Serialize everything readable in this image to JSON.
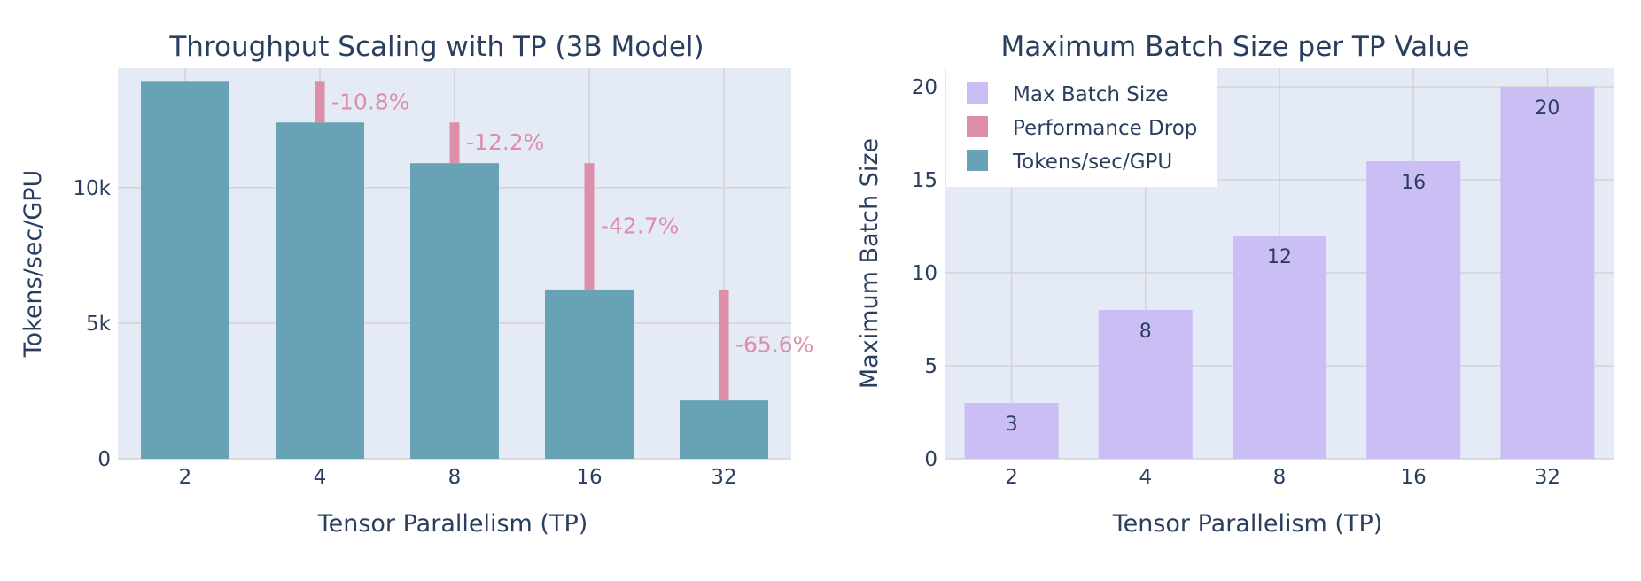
{
  "chart_data": [
    {
      "type": "bar",
      "title": "Throughput Scaling with TP (3B Model)",
      "xlabel": "Tensor Parallelism (TP)",
      "ylabel": "Tokens/sec/GPU",
      "categories": [
        "2",
        "4",
        "8",
        "16",
        "32"
      ],
      "ylim": [
        0,
        14400
      ],
      "yticks": [
        0,
        5000,
        10000
      ],
      "ytick_labels": [
        "0",
        "5k",
        "10k"
      ],
      "grid": true,
      "series": [
        {
          "name": "Tokens/sec/GPU",
          "color": "#67a3b5",
          "values": [
            13900,
            12400,
            10900,
            6240,
            2150
          ]
        },
        {
          "name": "Performance Drop",
          "color": "#dd8ea9",
          "segments": [
            {
              "category": "4",
              "from": 12400,
              "to": 13900,
              "label": "-10.8%"
            },
            {
              "category": "8",
              "from": 10900,
              "to": 12400,
              "label": "-12.2%"
            },
            {
              "category": "16",
              "from": 6240,
              "to": 10900,
              "label": "-42.7%"
            },
            {
              "category": "32",
              "from": 2150,
              "to": 6240,
              "label": "-65.6%"
            }
          ]
        }
      ]
    },
    {
      "type": "bar",
      "title": "Maximum Batch Size per TP Value",
      "xlabel": "Tensor Parallelism (TP)",
      "ylabel": "Maximum Batch Size",
      "categories": [
        "2",
        "4",
        "8",
        "16",
        "32"
      ],
      "ylim": [
        0,
        21
      ],
      "yticks": [
        0,
        5,
        10,
        15,
        20
      ],
      "ytick_labels": [
        "0",
        "5",
        "10",
        "15",
        "20"
      ],
      "grid": true,
      "series": [
        {
          "name": "Max Batch Size",
          "color": "#cbbef5",
          "values": [
            3,
            8,
            12,
            16,
            20
          ],
          "labels": [
            "3",
            "8",
            "12",
            "16",
            "20"
          ]
        }
      ]
    }
  ],
  "legend": {
    "placement": "top-left",
    "items": [
      {
        "label": "Max Batch Size",
        "color": "#cbbef5"
      },
      {
        "label": "Performance Drop",
        "color": "#dd8ea9"
      },
      {
        "label": "Tokens/sec/GPU",
        "color": "#67a3b5"
      }
    ]
  }
}
